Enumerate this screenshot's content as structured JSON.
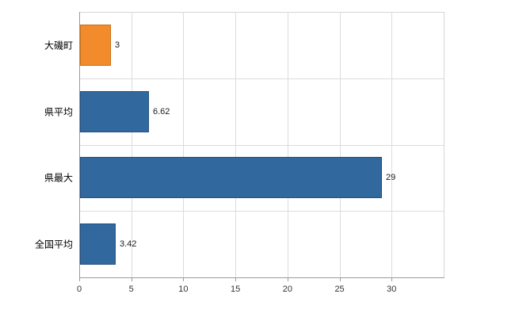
{
  "chart_data": {
    "type": "bar",
    "orientation": "horizontal",
    "title": "",
    "xlabel": "",
    "ylabel": "",
    "categories": [
      "大磯町",
      "県平均",
      "県最大",
      "全国平均"
    ],
    "values": [
      3,
      6.62,
      29,
      3.42
    ],
    "value_labels": [
      "3",
      "6.62",
      "29",
      "3.42"
    ],
    "bar_colors": [
      "#f28b2c",
      "#31689e",
      "#31689e",
      "#31689e"
    ],
    "bar_border_colors": [
      "#c96f14",
      "#24507d",
      "#24507d",
      "#24507d"
    ],
    "x_ticks": [
      0,
      5,
      10,
      15,
      20,
      25,
      30
    ],
    "xlim": [
      0,
      35
    ],
    "grid": true,
    "legend": "none",
    "colors": {
      "gridline": "#dcdcdc",
      "axis": "#9a9a9a",
      "background": "#ffffff",
      "text": "#000000"
    }
  }
}
